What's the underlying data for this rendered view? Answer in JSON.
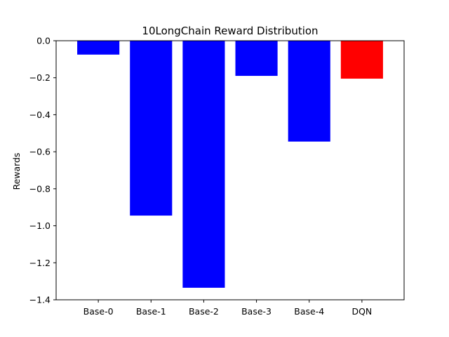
{
  "chart_data": {
    "type": "bar",
    "title": "10LongChain Reward Distribution",
    "xlabel": "",
    "ylabel": "Rewards",
    "categories": [
      "Base-0",
      "Base-1",
      "Base-2",
      "Base-3",
      "Base-4",
      "DQN"
    ],
    "values": [
      -0.075,
      -0.945,
      -1.335,
      -0.19,
      -0.545,
      -0.205
    ],
    "colors": [
      "#0000ff",
      "#0000ff",
      "#0000ff",
      "#0000ff",
      "#0000ff",
      "#ff0000"
    ],
    "ylim": [
      -1.4,
      0.0
    ],
    "yticks": [
      "0.0",
      "−0.2",
      "−0.4",
      "−0.6",
      "−0.8",
      "−1.0",
      "−1.2",
      "−1.4"
    ],
    "ytick_values": [
      0.0,
      -0.2,
      -0.4,
      -0.6,
      -0.8,
      -1.0,
      -1.2,
      -1.4
    ],
    "grid": false,
    "legend": "none"
  }
}
